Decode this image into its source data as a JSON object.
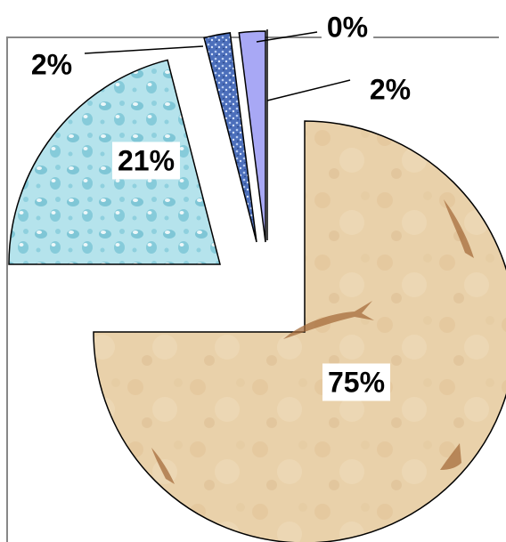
{
  "chart_data": {
    "type": "pie",
    "title": "",
    "slices": [
      {
        "label": "75%",
        "value": 75,
        "fill": "#e7cda4",
        "texture": "fossil-stone"
      },
      {
        "label": "21%",
        "value": 21,
        "fill": "#a9dde8",
        "texture": "water-droplets"
      },
      {
        "label": "2%",
        "value": 2,
        "fill": "#5e7fc4",
        "texture": "blue-speckle"
      },
      {
        "label": "2%",
        "value": 2,
        "fill": "#a8a8f5",
        "texture": "solid-lavender"
      },
      {
        "label": "0%",
        "value": 0,
        "fill": "#ffffff",
        "texture": "none"
      }
    ],
    "legend": "none",
    "exploded": true
  }
}
